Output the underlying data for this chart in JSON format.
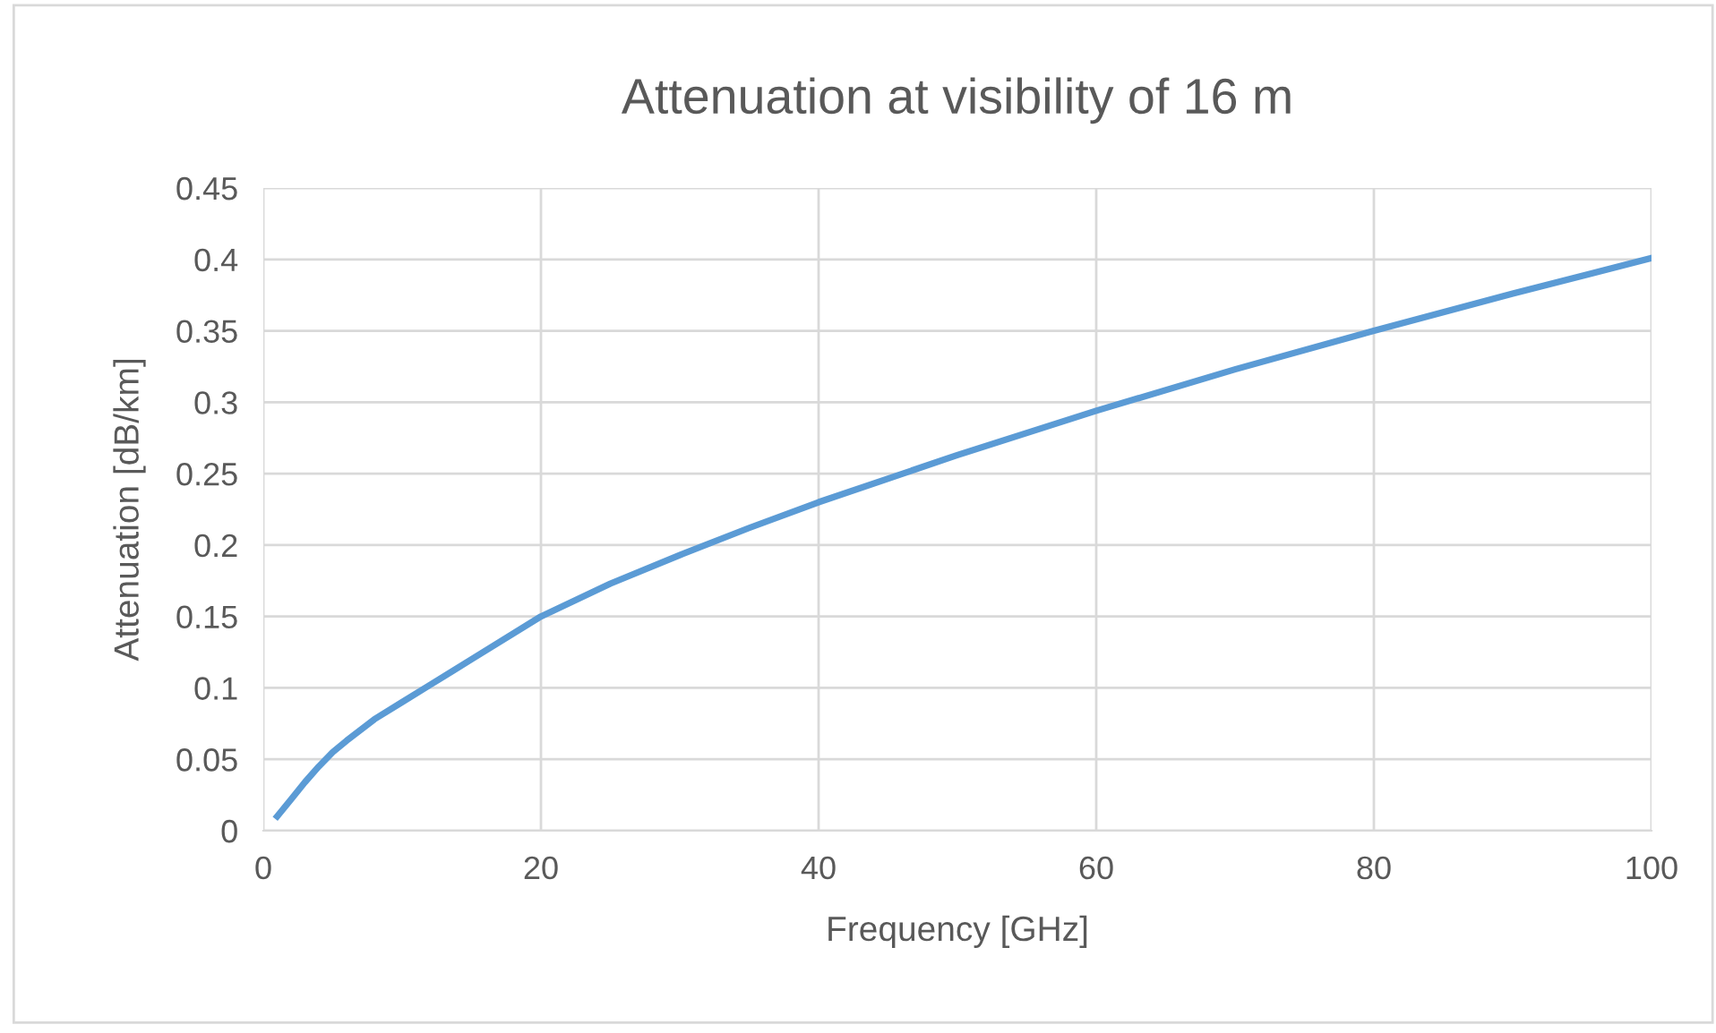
{
  "chart_data": {
    "type": "line",
    "title": "Attenuation at visibility of 16 m",
    "xlabel": "Frequency [GHz]",
    "ylabel": "Attenuation [dB/km]",
    "series": [
      {
        "color": "#5b9bd5",
        "x": [
          1,
          2,
          3,
          4,
          5,
          6,
          8,
          10,
          12,
          15,
          20,
          25,
          30,
          35,
          40,
          50,
          60,
          70,
          80,
          90,
          100
        ],
        "values": [
          0.01,
          0.022,
          0.034,
          0.045,
          0.055,
          0.063,
          0.078,
          0.09,
          0.102,
          0.12,
          0.15,
          0.173,
          0.193,
          0.212,
          0.23,
          0.263,
          0.294,
          0.323,
          0.35,
          0.376,
          0.401
        ]
      }
    ],
    "xlim": [
      0,
      100
    ],
    "xticks": [
      0,
      20,
      40,
      60,
      80,
      100
    ],
    "ylim": [
      0,
      0.45
    ],
    "yticks": [
      0,
      0.05,
      0.1,
      0.15,
      0.2,
      0.25,
      0.3,
      0.35,
      0.4,
      0.45
    ],
    "grid": true,
    "legend": false,
    "marker": "none",
    "line_style": "solid"
  }
}
